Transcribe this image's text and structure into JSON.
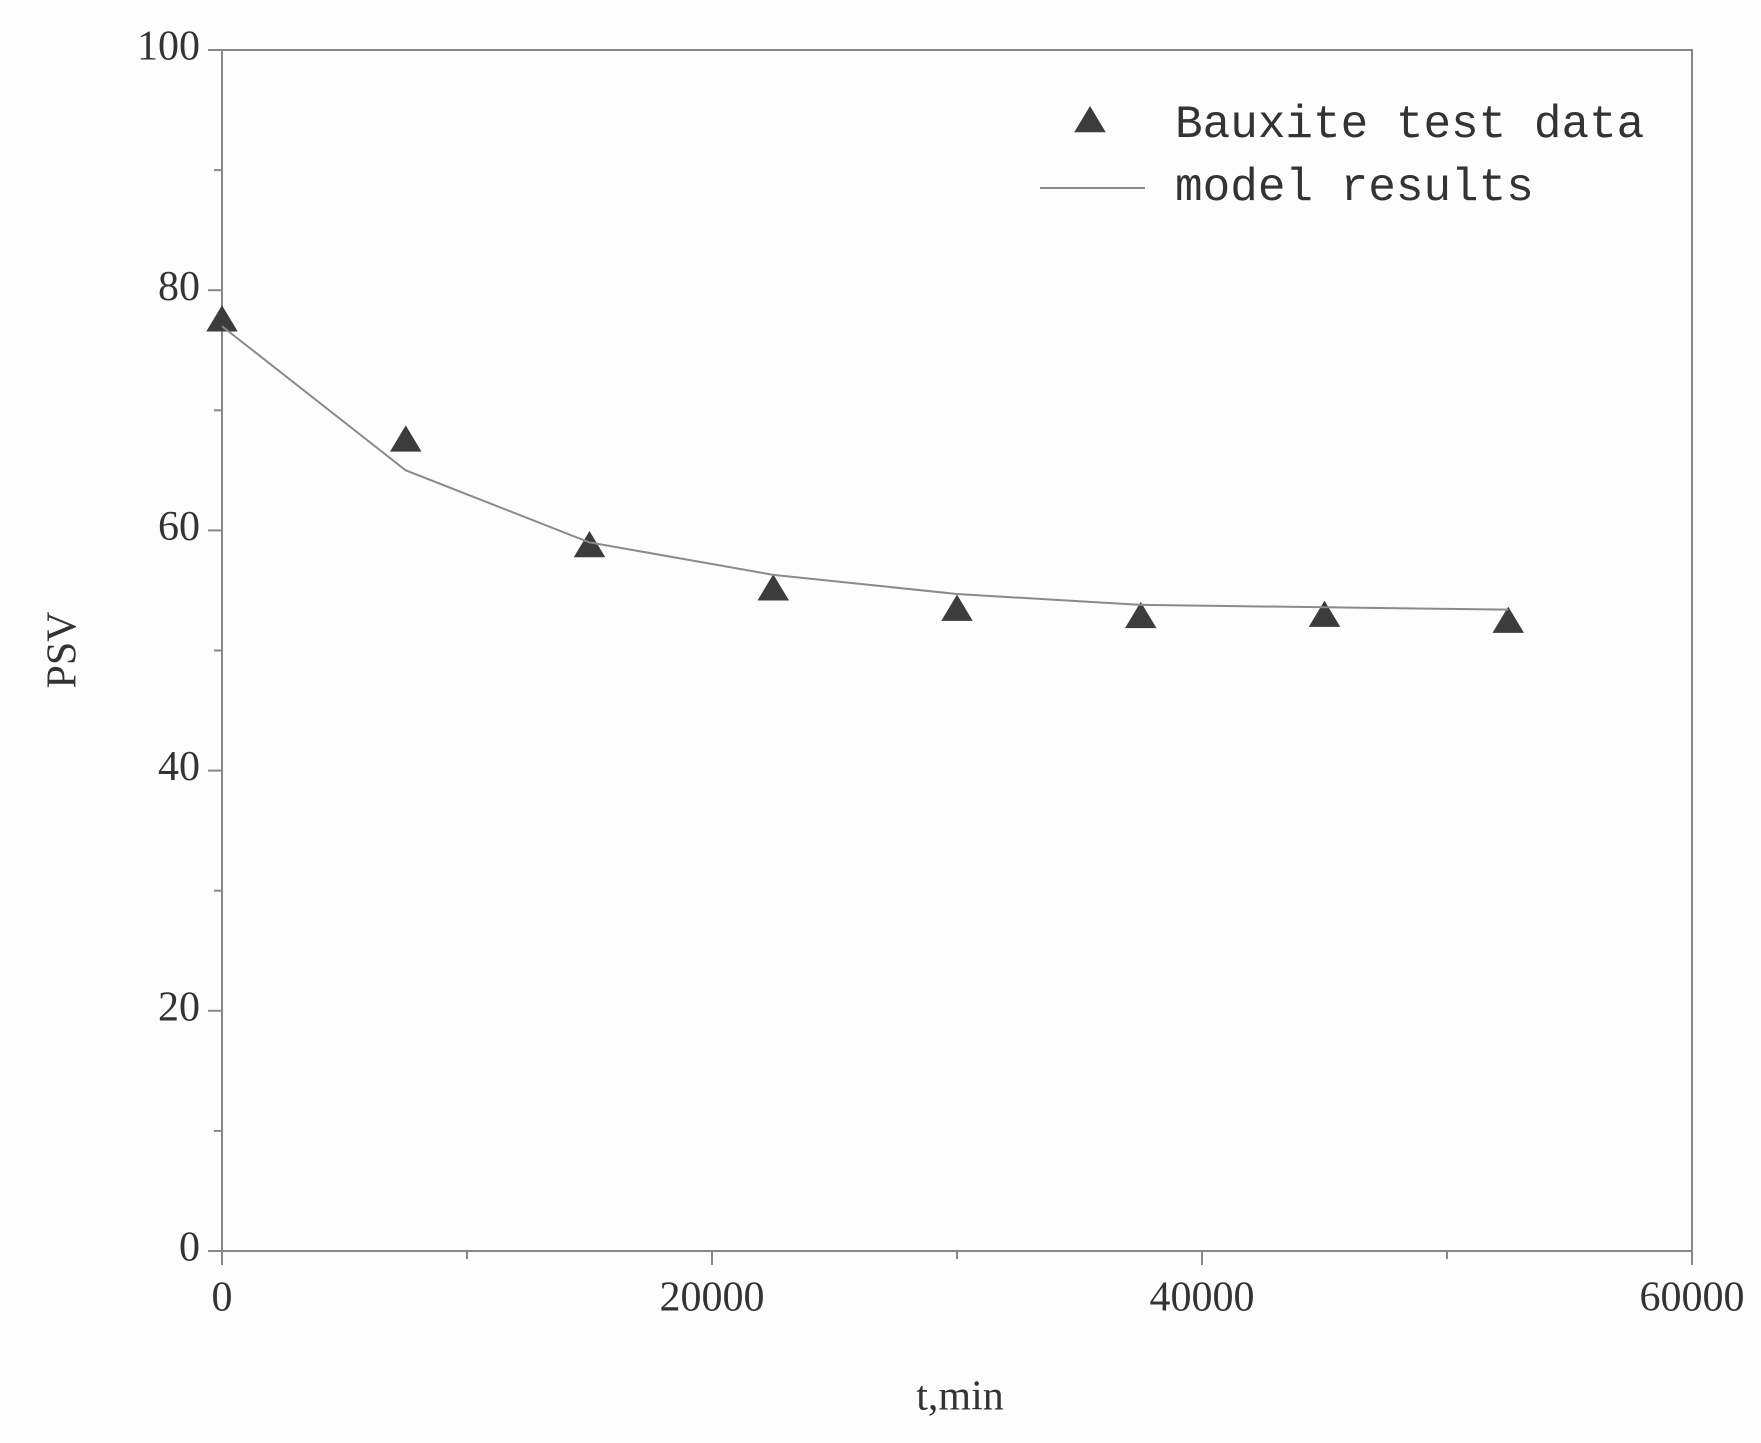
{
  "chart_data": {
    "type": "scatter",
    "xlabel": "t,min",
    "ylabel": "PSV",
    "xlim": [
      0,
      60000
    ],
    "xticks": [
      0,
      20000,
      40000,
      60000
    ],
    "ylim": [
      0,
      100
    ],
    "yticks": [
      0,
      20,
      40,
      60,
      80,
      100
    ],
    "legend": "upper right",
    "series": [
      {
        "name": "Bauxite test data",
        "type": "scatter",
        "marker": "triangle",
        "color": "#3c3c3c",
        "x": [
          0,
          7500,
          15000,
          22500,
          30000,
          37500,
          45000,
          52500
        ],
        "values": [
          77.5,
          67.5,
          58.7,
          55.1,
          53.4,
          52.8,
          52.9,
          52.4
        ]
      },
      {
        "name": "model results",
        "type": "line",
        "color": "#8a8a8a",
        "x": [
          0,
          7500,
          15000,
          22500,
          30000,
          37500,
          45000,
          52500
        ],
        "values": [
          77,
          65,
          59,
          56.3,
          54.7,
          53.8,
          53.6,
          53.4
        ]
      }
    ]
  }
}
